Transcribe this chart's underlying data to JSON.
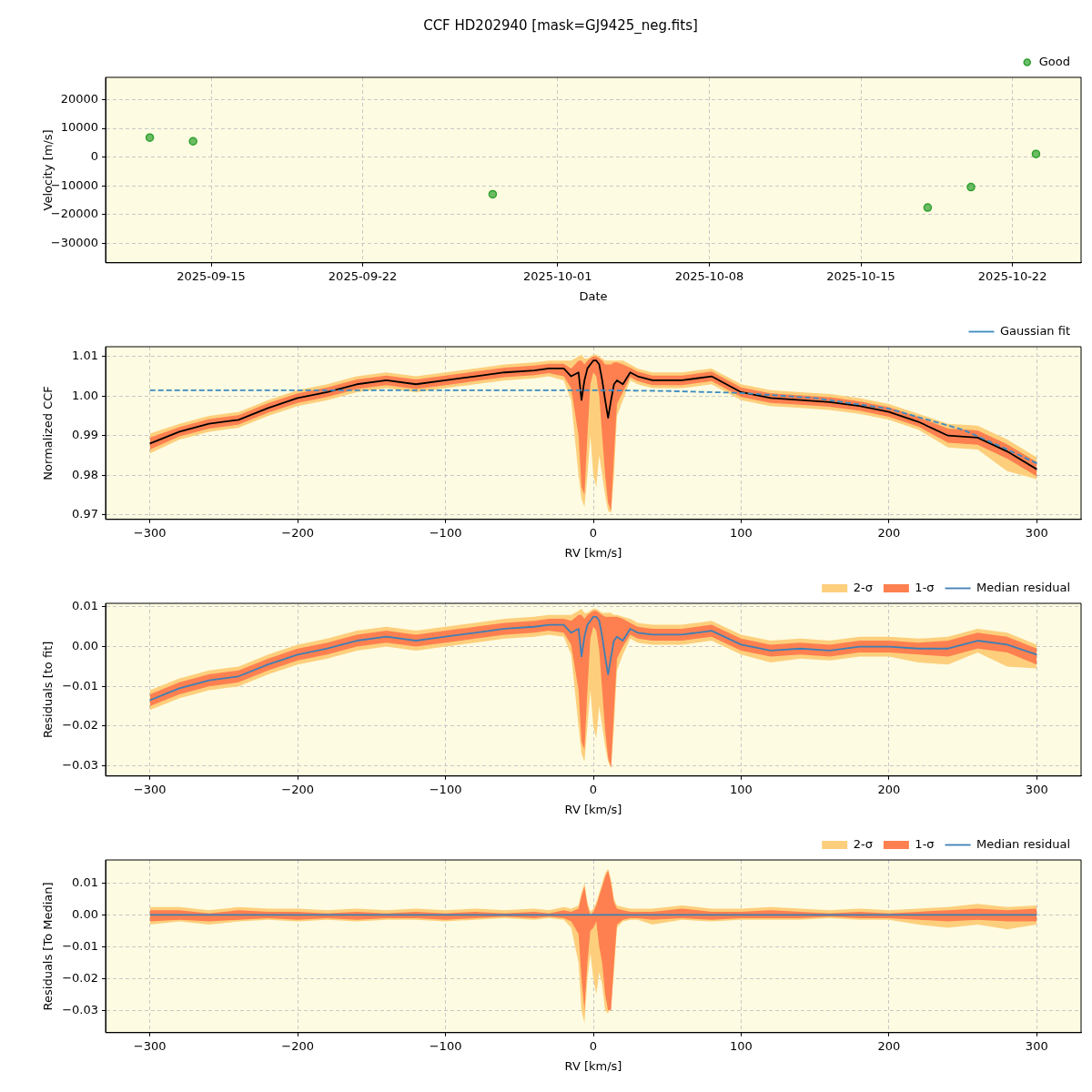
{
  "chart_data": [
    {
      "type": "scatter",
      "title": "CCF HD202940 [mask=GJ9425_neg.fits]",
      "xlabel": "Date",
      "ylabel": "Velocity [m/s]",
      "x": [
        "2025-09-12T04:00",
        "2025-09-14T04:00",
        "2025-09-28T00:00",
        "2025-10-18T02:00",
        "2025-10-20T02:00",
        "2025-10-23T02:00"
      ],
      "series": [
        {
          "name": "Good",
          "color": "#2ca02c",
          "values": [
            6800,
            5500,
            -12900,
            -17500,
            -10400,
            1100
          ]
        }
      ],
      "xlim": [
        "2025-09-10T03:00",
        "2025-10-25T04:00"
      ],
      "xticks": [
        "2025-09-15",
        "2025-09-22",
        "2025-10-01",
        "2025-10-08",
        "2025-10-15",
        "2025-10-22"
      ],
      "ylim": [
        -36700,
        27700
      ],
      "yticks": [
        {
          "value": -30000,
          "label": "−30000"
        },
        {
          "value": -20000,
          "label": "−20000"
        },
        {
          "value": -10000,
          "label": "−10000"
        },
        0,
        10000,
        20000
      ],
      "grid": true,
      "legend": "top right",
      "marker": "circle"
    },
    {
      "type": "line",
      "xlabel": "RV [km/s]",
      "ylabel": "Normalized CCF",
      "x": [
        -300,
        -280,
        -260,
        -240,
        -220,
        -200,
        -180,
        -160,
        -140,
        -120,
        -100,
        -80,
        -60,
        -40,
        -30,
        -20,
        -15,
        -10,
        -8,
        -6,
        -4,
        -2,
        0,
        2,
        4,
        6,
        8,
        10,
        12,
        14,
        16,
        20,
        25,
        30,
        40,
        60,
        80,
        100,
        120,
        140,
        160,
        180,
        200,
        220,
        240,
        260,
        280,
        300
      ],
      "series": [
        {
          "type": "line",
          "color": "#fdcf7c",
          "values": [
            null,
            null,
            null,
            null,
            null,
            null,
            null,
            null,
            null,
            null,
            null,
            null,
            null,
            null,
            null,
            null,
            null,
            null,
            null,
            null,
            null,
            null,
            null,
            null,
            null,
            null,
            null,
            null,
            null,
            null,
            null,
            null,
            null,
            null,
            null,
            null,
            null,
            null,
            null,
            null,
            null,
            null,
            null,
            null,
            null,
            null,
            null,
            null
          ],
          "lower": [
            0.9855,
            0.989,
            0.991,
            0.992,
            0.995,
            0.9975,
            0.999,
            1.001,
            1.002,
            1.001,
            1.002,
            1.003,
            1.004,
            1.0045,
            1.005,
            1.004,
            0.999,
            0.98,
            0.974,
            0.972,
            0.98,
            0.99,
            0.98,
            0.977,
            0.985,
            0.98,
            0.975,
            0.971,
            0.9705,
            0.98,
            0.995,
            0.999,
            1.004,
            1.003,
            1.002,
            1.002,
            1.003,
            0.999,
            0.9975,
            0.997,
            0.9965,
            0.9955,
            0.994,
            0.9915,
            0.987,
            0.9865,
            0.981,
            0.979
          ],
          "upper": [
            0.9905,
            0.993,
            0.995,
            0.996,
            0.999,
            1.0015,
            1.003,
            1.005,
            1.006,
            1.005,
            1.006,
            1.007,
            1.008,
            1.0085,
            1.009,
            1.009,
            1.009,
            1.01,
            1.0105,
            1.0095,
            1.0095,
            1.01,
            1.0105,
            1.0105,
            1.01,
            1.0095,
            1.009,
            1.009,
            1.009,
            1.009,
            1.009,
            1.009,
            1.008,
            1.007,
            1.006,
            1.006,
            1.007,
            1.003,
            1.0015,
            1.001,
            1.0005,
            0.9995,
            0.998,
            0.9955,
            0.993,
            0.9925,
            0.989,
            0.9845
          ]
        },
        {
          "type": "line",
          "color": "#fe8050",
          "values": [
            null,
            null,
            null,
            null,
            null,
            null,
            null,
            null,
            null,
            null,
            null,
            null,
            null,
            null,
            null,
            null,
            null,
            null,
            null,
            null,
            null,
            null,
            null,
            null,
            null,
            null,
            null,
            null,
            null,
            null,
            null,
            null,
            null,
            null,
            null,
            null,
            null,
            null,
            null,
            null,
            null,
            null,
            null,
            null,
            null,
            null,
            null,
            null
          ],
          "lower": [
            0.9865,
            0.9898,
            0.9918,
            0.9928,
            0.9958,
            0.9983,
            0.9998,
            1.0018,
            1.0028,
            1.0018,
            1.0028,
            1.0038,
            1.0048,
            1.0053,
            1.0058,
            1.005,
            1.002,
            0.99,
            0.977,
            0.975,
            0.99,
            1.003,
            1.006,
            1.005,
            1.0,
            0.99,
            0.98,
            0.973,
            0.971,
            0.985,
            0.998,
            1.001,
            1.0048,
            1.0038,
            1.0028,
            1.0028,
            1.0038,
            0.9998,
            0.9983,
            0.9978,
            0.9973,
            0.9963,
            0.9948,
            0.9923,
            0.9882,
            0.9877,
            0.9842,
            0.9797
          ],
          "upper": [
            0.9895,
            0.9922,
            0.9942,
            0.9952,
            0.9982,
            1.0007,
            1.0022,
            1.0042,
            1.0052,
            1.0042,
            1.0052,
            1.0062,
            1.0072,
            1.0077,
            1.0082,
            1.0082,
            1.007,
            1.009,
            1.009,
            1.008,
            1.009,
            1.0095,
            1.01,
            1.01,
            1.0095,
            1.009,
            1.008,
            1.008,
            1.008,
            1.0085,
            1.0085,
            1.008,
            1.0072,
            1.0062,
            1.0052,
            1.0052,
            1.0062,
            1.0022,
            1.0007,
            1.0002,
            0.9997,
            0.9987,
            0.9972,
            0.9947,
            0.9918,
            0.9913,
            0.9878,
            0.9833
          ]
        },
        {
          "type": "line",
          "color": "#000000",
          "values": [
            0.988,
            0.991,
            0.993,
            0.994,
            0.997,
            0.9995,
            1.001,
            1.003,
            1.004,
            1.003,
            1.004,
            1.005,
            1.006,
            1.0065,
            1.007,
            1.007,
            1.005,
            1.006,
            0.999,
            1.004,
            1.007,
            1.008,
            1.009,
            1.009,
            1.008,
            1.004,
            0.999,
            0.9945,
            0.999,
            1.003,
            1.004,
            1.003,
            1.006,
            1.005,
            1.004,
            1.004,
            1.005,
            1.001,
            0.9995,
            0.999,
            0.9985,
            0.9975,
            0.996,
            0.9935,
            0.99,
            0.9895,
            0.986,
            0.9815
          ]
        },
        {
          "type": "line",
          "name": "Gaussian fit",
          "color": "#3b8bc2",
          "line_style": "dashed",
          "x": [
            -300,
            -200,
            -100,
            0,
            50,
            100,
            150,
            200,
            250,
            280,
            300
          ],
          "values": [
            1.0015,
            1.0015,
            1.0015,
            1.0015,
            1.0013,
            1.0008,
            0.9995,
            0.9968,
            0.9915,
            0.9865,
            0.983
          ]
        }
      ],
      "xlim": [
        -330,
        330
      ],
      "xticks": [
        {
          "value": -300,
          "label": "−300"
        },
        {
          "value": -200,
          "label": "−200"
        },
        {
          "value": -100,
          "label": "−100"
        },
        0,
        100,
        200,
        300
      ],
      "ylim": [
        0.9688,
        1.0125
      ],
      "yticks": [
        0.97,
        0.98,
        0.99,
        {
          "value": 1,
          "label": "1.00"
        },
        1.01
      ],
      "grid": true,
      "legend": "top right"
    },
    {
      "type": "line",
      "xlabel": "RV [km/s]",
      "ylabel": "Residuals [to fit]",
      "x": [
        -300,
        -280,
        -260,
        -240,
        -220,
        -200,
        -180,
        -160,
        -140,
        -120,
        -100,
        -80,
        -60,
        -40,
        -30,
        -20,
        -15,
        -10,
        -8,
        -6,
        -4,
        -2,
        0,
        2,
        4,
        6,
        8,
        10,
        12,
        14,
        16,
        20,
        25,
        30,
        40,
        60,
        80,
        100,
        120,
        140,
        160,
        180,
        200,
        220,
        240,
        260,
        280,
        300
      ],
      "series": [
        {
          "type": "line",
          "name": "2-σ",
          "color": "#fdcf7c",
          "values": [
            null,
            null,
            null,
            null,
            null,
            null,
            null,
            null,
            null,
            null,
            null,
            null,
            null,
            null,
            null,
            null,
            null,
            null,
            null,
            null,
            null,
            null,
            null,
            null,
            null,
            null,
            null,
            null,
            null,
            null,
            null,
            null,
            null,
            null,
            null,
            null,
            null,
            null,
            null,
            null,
            null,
            null,
            null,
            null,
            null,
            null,
            null,
            null
          ],
          "lower": [
            -0.016,
            -0.013,
            -0.011,
            -0.01,
            -0.007,
            -0.0045,
            -0.003,
            -0.001,
            0.0,
            -0.001,
            0.0,
            0.001,
            0.002,
            0.0025,
            0.003,
            0.0025,
            -0.002,
            -0.02,
            -0.027,
            -0.029,
            -0.02,
            -0.011,
            -0.02,
            -0.023,
            -0.015,
            -0.02,
            -0.025,
            -0.029,
            -0.0305,
            -0.02,
            -0.006,
            -0.002,
            0.002,
            0.001,
            0.0005,
            0.0005,
            0.0015,
            -0.002,
            -0.004,
            -0.003,
            -0.0035,
            -0.0025,
            -0.0025,
            -0.004,
            -0.0045,
            -0.0015,
            -0.005,
            -0.0055
          ],
          "upper": [
            -0.011,
            -0.008,
            -0.006,
            -0.005,
            -0.002,
            0.0005,
            0.002,
            0.004,
            0.005,
            0.004,
            0.005,
            0.006,
            0.007,
            0.0075,
            0.008,
            0.008,
            0.008,
            0.009,
            0.0095,
            0.0085,
            0.0085,
            0.009,
            0.0095,
            0.0095,
            0.009,
            0.0085,
            0.0085,
            0.0085,
            0.0085,
            0.008,
            0.008,
            0.0075,
            0.007,
            0.006,
            0.0055,
            0.0055,
            0.0065,
            0.003,
            0.0015,
            0.002,
            0.0015,
            0.0025,
            0.0025,
            0.002,
            0.0025,
            0.0045,
            0.0035,
            0.0005
          ]
        },
        {
          "type": "line",
          "name": "1-σ",
          "color": "#fe8050",
          "values": [
            null,
            null,
            null,
            null,
            null,
            null,
            null,
            null,
            null,
            null,
            null,
            null,
            null,
            null,
            null,
            null,
            null,
            null,
            null,
            null,
            null,
            null,
            null,
            null,
            null,
            null,
            null,
            null,
            null,
            null,
            null,
            null,
            null,
            null,
            null,
            null,
            null,
            null,
            null,
            null,
            null,
            null,
            null,
            null,
            null,
            null,
            null,
            null
          ],
          "lower": [
            -0.015,
            -0.012,
            -0.01,
            -0.009,
            -0.006,
            -0.0035,
            -0.002,
            0.0,
            0.001,
            0.0,
            0.001,
            0.002,
            0.003,
            0.0035,
            0.004,
            0.0035,
            0.0005,
            -0.011,
            -0.024,
            -0.026,
            -0.011,
            0.002,
            0.005,
            0.004,
            -0.001,
            -0.011,
            -0.021,
            -0.028,
            -0.0305,
            -0.016,
            -0.003,
            0.0,
            0.003,
            0.002,
            0.0015,
            0.0015,
            0.0025,
            -0.001,
            -0.0025,
            -0.002,
            -0.0025,
            -0.0015,
            -0.0015,
            -0.002,
            -0.0025,
            -0.0005,
            -0.0015,
            -0.0045
          ],
          "upper": [
            -0.012,
            -0.009,
            -0.007,
            -0.006,
            -0.003,
            -0.0005,
            0.001,
            0.003,
            0.004,
            0.003,
            0.004,
            0.005,
            0.006,
            0.0065,
            0.007,
            0.007,
            0.0065,
            0.008,
            0.008,
            0.007,
            0.008,
            0.0085,
            0.009,
            0.009,
            0.0085,
            0.008,
            0.0075,
            0.0075,
            0.0075,
            0.0075,
            0.0075,
            0.007,
            0.006,
            0.005,
            0.0045,
            0.0045,
            0.0055,
            0.002,
            0.0005,
            0.001,
            0.0005,
            0.0015,
            0.0015,
            0.001,
            0.0015,
            0.0035,
            0.0025,
            -0.0005
          ]
        },
        {
          "type": "line",
          "name": "Median residual",
          "color": "#3f7fb5",
          "values": [
            -0.0135,
            -0.0105,
            -0.0085,
            -0.0075,
            -0.0045,
            -0.002,
            -0.0005,
            0.0015,
            0.0025,
            0.0015,
            0.0025,
            0.0035,
            0.0045,
            0.005,
            0.0055,
            0.0055,
            0.0035,
            0.0045,
            -0.0025,
            0.0025,
            0.0055,
            0.0065,
            0.0075,
            0.0075,
            0.0065,
            0.0025,
            -0.0025,
            -0.007,
            -0.0025,
            0.0015,
            0.0025,
            0.0015,
            0.0045,
            0.0035,
            0.003,
            0.003,
            0.004,
            0.0005,
            -0.001,
            -0.0005,
            -0.001,
            0.0,
            0.0,
            -0.0005,
            -0.0005,
            0.0015,
            0.0005,
            -0.002
          ]
        }
      ],
      "xlim": [
        -330,
        330
      ],
      "xticks": [
        {
          "value": -300,
          "label": "−300"
        },
        {
          "value": -200,
          "label": "−200"
        },
        {
          "value": -100,
          "label": "−100"
        },
        0,
        100,
        200,
        300
      ],
      "ylim": [
        -0.0326,
        0.0109
      ],
      "yticks": [
        {
          "value": -0.03,
          "label": "−0.03"
        },
        {
          "value": -0.02,
          "label": "−0.02"
        },
        {
          "value": -0.01,
          "label": "−0.01"
        },
        {
          "value": 0,
          "label": "0.00"
        },
        0.01
      ],
      "grid": true,
      "legend": "top right"
    },
    {
      "type": "line",
      "xlabel": "RV [km/s]",
      "ylabel": "Residuals [To Median]",
      "x": [
        -300,
        -280,
        -260,
        -240,
        -220,
        -200,
        -180,
        -160,
        -140,
        -120,
        -100,
        -80,
        -60,
        -40,
        -30,
        -20,
        -15,
        -10,
        -8,
        -6,
        -4,
        -2,
        0,
        2,
        4,
        6,
        8,
        10,
        12,
        14,
        16,
        20,
        25,
        30,
        40,
        60,
        80,
        100,
        120,
        140,
        160,
        180,
        200,
        220,
        240,
        260,
        280,
        300
      ],
      "series": [
        {
          "type": "line",
          "name": "2-σ",
          "color": "#fdcf7c",
          "values": [
            null,
            null,
            null,
            null,
            null,
            null,
            null,
            null,
            null,
            null,
            null,
            null,
            null,
            null,
            null,
            null,
            null,
            null,
            null,
            null,
            null,
            null,
            null,
            null,
            null,
            null,
            null,
            null,
            null,
            null,
            null,
            null,
            null,
            null,
            null,
            null,
            null,
            null,
            null,
            null,
            null,
            null,
            null,
            null,
            null,
            null,
            null,
            null
          ],
          "lower": [
            -0.003,
            -0.002,
            -0.003,
            -0.002,
            -0.0015,
            -0.002,
            -0.0015,
            -0.002,
            -0.0015,
            -0.0015,
            -0.002,
            -0.0015,
            -0.001,
            -0.0015,
            -0.001,
            -0.0015,
            -0.004,
            -0.015,
            -0.03,
            -0.034,
            -0.02,
            -0.012,
            -0.02,
            -0.025,
            -0.018,
            -0.022,
            -0.03,
            -0.031,
            -0.028,
            -0.018,
            -0.004,
            -0.002,
            -0.0015,
            -0.0015,
            -0.003,
            -0.0015,
            -0.002,
            -0.0015,
            -0.0015,
            -0.0015,
            -0.001,
            -0.0015,
            -0.0015,
            -0.003,
            -0.004,
            -0.003,
            -0.0045,
            -0.003
          ],
          "upper": [
            0.0025,
            0.0025,
            0.0015,
            0.0025,
            0.002,
            0.002,
            0.0015,
            0.002,
            0.0015,
            0.002,
            0.0015,
            0.002,
            0.0015,
            0.002,
            0.0015,
            0.0025,
            0.002,
            0.003,
            0.007,
            0.01,
            0.004,
            0.001,
            0.002,
            0.004,
            0.007,
            0.01,
            0.013,
            0.0145,
            0.011,
            0.005,
            0.003,
            0.0025,
            0.002,
            0.002,
            0.002,
            0.003,
            0.002,
            0.002,
            0.0025,
            0.002,
            0.0015,
            0.002,
            0.0015,
            0.002,
            0.0025,
            0.0035,
            0.0025,
            0.003
          ]
        },
        {
          "type": "line",
          "name": "1-σ",
          "color": "#fe8050",
          "values": [
            null,
            null,
            null,
            null,
            null,
            null,
            null,
            null,
            null,
            null,
            null,
            null,
            null,
            null,
            null,
            null,
            null,
            null,
            null,
            null,
            null,
            null,
            null,
            null,
            null,
            null,
            null,
            null,
            null,
            null,
            null,
            null,
            null,
            null,
            null,
            null,
            null,
            null,
            null,
            null,
            null,
            null,
            null,
            null,
            null,
            null,
            null,
            null
          ],
          "lower": [
            -0.002,
            -0.0015,
            -0.002,
            -0.0015,
            -0.001,
            -0.0015,
            -0.001,
            -0.0015,
            -0.001,
            -0.001,
            -0.0015,
            -0.001,
            -0.0005,
            -0.001,
            -0.0005,
            -0.001,
            -0.002,
            -0.006,
            -0.02,
            -0.03,
            -0.015,
            -0.005,
            -0.004,
            -0.002,
            -0.01,
            -0.015,
            -0.025,
            -0.03,
            -0.03,
            -0.015,
            -0.003,
            -0.0015,
            -0.001,
            -0.001,
            -0.0015,
            -0.001,
            -0.0015,
            -0.001,
            -0.001,
            -0.001,
            -0.0005,
            -0.001,
            -0.001,
            -0.0015,
            -0.002,
            -0.0015,
            -0.002,
            -0.002
          ],
          "upper": [
            0.0015,
            0.0015,
            0.0005,
            0.0015,
            0.001,
            0.001,
            0.0005,
            0.001,
            0.0005,
            0.001,
            0.0005,
            0.001,
            0.0005,
            0.001,
            0.0005,
            0.0015,
            0.001,
            0.002,
            0.006,
            0.009,
            0.003,
            0.0,
            0.001,
            0.003,
            0.006,
            0.009,
            0.012,
            0.014,
            0.01,
            0.004,
            0.002,
            0.0015,
            0.001,
            0.001,
            0.001,
            0.002,
            0.001,
            0.001,
            0.0015,
            0.001,
            0.0005,
            0.001,
            0.0005,
            0.001,
            0.0015,
            0.002,
            0.0015,
            0.002
          ]
        },
        {
          "type": "line",
          "name": "Median residual",
          "color": "#3f7fb5",
          "values": [
            0,
            0,
            0,
            0,
            0,
            0,
            0,
            0,
            0,
            0,
            0,
            0,
            0,
            0,
            0,
            0,
            0,
            0,
            0,
            0,
            0,
            0,
            0,
            0,
            0,
            0,
            0,
            0,
            0,
            0,
            0,
            0,
            0,
            0,
            0,
            0,
            0,
            0,
            0,
            0,
            0,
            0,
            0,
            0,
            0,
            0,
            0,
            0
          ]
        }
      ],
      "xlim": [
        -330,
        330
      ],
      "xticks": [
        {
          "value": -300,
          "label": "−300"
        },
        {
          "value": -200,
          "label": "−200"
        },
        {
          "value": -100,
          "label": "−100"
        },
        0,
        100,
        200,
        300
      ],
      "ylim": [
        -0.037,
        0.0173
      ],
      "yticks": [
        {
          "value": -0.03,
          "label": "−0.03"
        },
        {
          "value": -0.02,
          "label": "−0.02"
        },
        {
          "value": -0.01,
          "label": "−0.01"
        },
        {
          "value": 0,
          "label": "0.00"
        },
        0.01
      ],
      "grid": true,
      "legend": "top right"
    }
  ]
}
